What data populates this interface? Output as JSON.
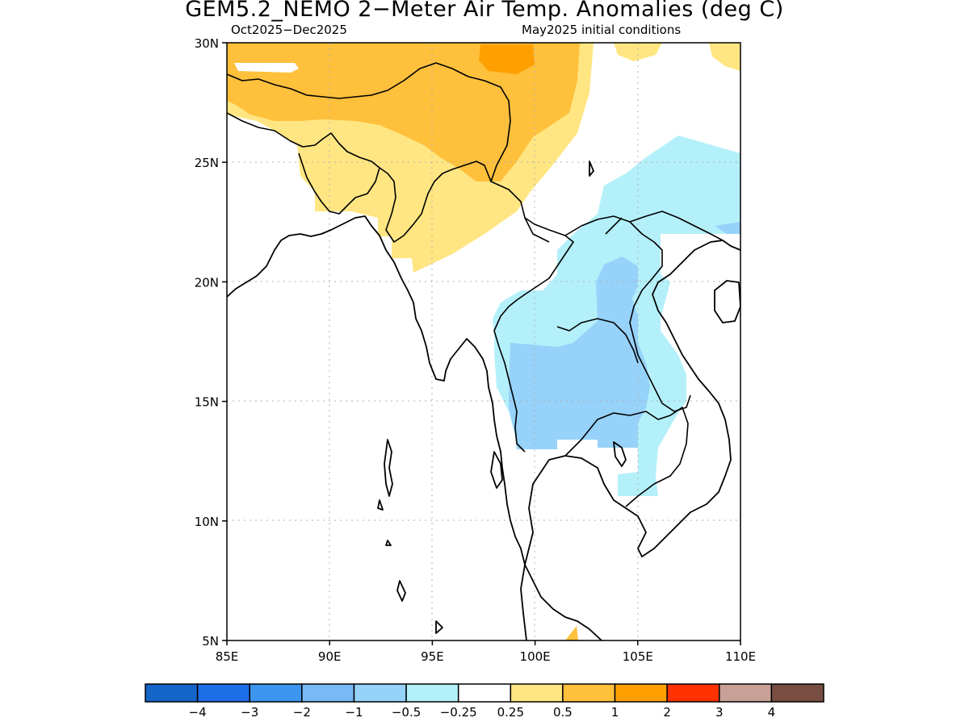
{
  "title": "GEM5.2_NEMO 2−Meter Air Temp. Anomalies (deg C)",
  "subtitle_left": "Oct2025−Dec2025",
  "subtitle_right": "May2025 initial conditions",
  "map": {
    "lon_range": [
      85,
      110
    ],
    "lat_range": [
      5,
      30
    ],
    "lat_ticks": [
      {
        "value": 30,
        "label": "30N"
      },
      {
        "value": 25,
        "label": "25N"
      },
      {
        "value": 20,
        "label": "20N"
      },
      {
        "value": 15,
        "label": "15N"
      },
      {
        "value": 10,
        "label": "10N"
      },
      {
        "value": 5,
        "label": "5N"
      }
    ],
    "lon_ticks": [
      {
        "value": 85,
        "label": "85E"
      },
      {
        "value": 90,
        "label": "90E"
      },
      {
        "value": 95,
        "label": "95E"
      },
      {
        "value": 100,
        "label": "100E"
      },
      {
        "value": 105,
        "label": "105E"
      },
      {
        "value": 110,
        "label": "110E"
      }
    ],
    "grid": "dotted"
  },
  "colorbar": {
    "colors": [
      "#1565c8",
      "#1e6ee8",
      "#3c96f0",
      "#78b9f6",
      "#96d2fa",
      "#b4f0fa",
      "#ffffff",
      "#ffe682",
      "#ffc03c",
      "#ffa000",
      "#ff3200",
      "#c8a096",
      "#784e42"
    ],
    "labels": [
      "−4",
      "−3",
      "−2",
      "−1",
      "−0.5",
      "−0.25",
      "0.25",
      "0.5",
      "1",
      "2",
      "3",
      "4"
    ]
  },
  "anomaly_colors": {
    "warm_0_25_to_0_5": "#ffe682",
    "warm_0_5_to_1": "#ffc03c",
    "warm_1_to_2": "#ffa000",
    "cool_m0_5_to_m0_25": "#b4f0fa",
    "cool_m1_to_m0_5": "#96d2fa"
  }
}
